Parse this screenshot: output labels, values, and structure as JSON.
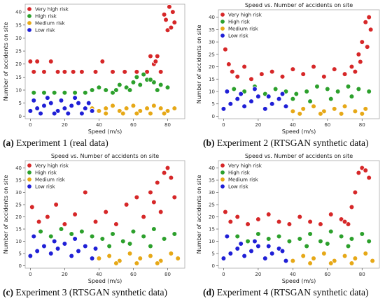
{
  "figure": {
    "captions": [
      {
        "tag": "(a)",
        "text": "Experiment 1 (real data)"
      },
      {
        "tag": "(b)",
        "text": "Experiment 2 (RTSGAN synthetic data)"
      },
      {
        "tag": "(c)",
        "text": "Experiment 3 (RTSGAN synthetic data)"
      },
      {
        "tag": "(d)",
        "text": "Experiment 4 (RTSGAN synthetic data)"
      }
    ]
  },
  "chart_data": [
    {
      "type": "scatter",
      "title": "",
      "xlabel": "Speed (m/s)",
      "ylabel": "Number of accidents on site",
      "xlim": [
        -3,
        90
      ],
      "ylim": [
        -1,
        43
      ],
      "xticks": [
        0,
        20,
        40,
        60,
        80
      ],
      "yticks": [
        0,
        5,
        10,
        15,
        20,
        25,
        30,
        35,
        40
      ],
      "grid": false,
      "legend_position": "top-left",
      "series": [
        {
          "name": "Very high risk",
          "color": "#d62728",
          "x": [
            0,
            2,
            4,
            8,
            12,
            16,
            20,
            25,
            30,
            38,
            42,
            48,
            55,
            62,
            68,
            72,
            74,
            76,
            70,
            73,
            79,
            81,
            83,
            84,
            80,
            82,
            78
          ],
          "y": [
            21,
            17,
            21,
            17,
            21,
            17,
            17,
            17,
            17,
            17,
            21,
            17,
            17,
            17,
            17,
            20,
            23,
            17,
            23,
            21,
            37,
            42,
            40,
            36,
            33,
            34,
            39
          ]
        },
        {
          "name": "High risk",
          "color": "#2ca02c",
          "x": [
            2,
            8,
            14,
            20,
            26,
            32,
            36,
            40,
            44,
            48,
            52,
            56,
            60,
            64,
            68,
            72,
            76,
            80,
            62,
            66,
            70,
            74,
            58,
            50
          ],
          "y": [
            9,
            9,
            9,
            9,
            9,
            9,
            10,
            11,
            10,
            9,
            12,
            11,
            13,
            12,
            14,
            13,
            12,
            11,
            15,
            16,
            14,
            10,
            10,
            10
          ]
        },
        {
          "name": "Medium risk",
          "color": "#e6a817",
          "x": [
            36,
            40,
            44,
            48,
            52,
            56,
            60,
            64,
            68,
            72,
            76,
            80,
            84,
            44,
            54,
            62,
            70,
            78
          ],
          "y": [
            3,
            2,
            3,
            4,
            2,
            3,
            4,
            2,
            3,
            4,
            3,
            2,
            3,
            1,
            1,
            1,
            1,
            1
          ]
        },
        {
          "name": "Low risk",
          "color": "#1f1fd6",
          "x": [
            0,
            4,
            8,
            12,
            16,
            20,
            24,
            28,
            32,
            36,
            2,
            10,
            18,
            26,
            34,
            6,
            14,
            22,
            30
          ],
          "y": [
            2,
            3,
            4,
            5,
            2,
            3,
            4,
            5,
            3,
            2,
            6,
            7,
            6,
            7,
            5,
            1,
            1,
            1,
            1
          ]
        }
      ]
    },
    {
      "type": "scatter",
      "title": "Speed vs. Number of accidents on site",
      "xlabel": "Speed (m/s)",
      "ylabel": "Number of accidents on site",
      "xlim": [
        -3,
        90
      ],
      "ylim": [
        -1,
        43
      ],
      "xticks": [
        0,
        20,
        40,
        60,
        80
      ],
      "yticks": [
        0,
        5,
        10,
        15,
        20,
        25,
        30,
        35,
        40
      ],
      "grid": false,
      "legend_position": "top-left",
      "series": [
        {
          "name": "Very high risk",
          "color": "#d62728",
          "x": [
            1,
            3,
            5,
            8,
            12,
            16,
            22,
            28,
            34,
            40,
            46,
            52,
            58,
            64,
            70,
            74,
            78,
            80,
            82,
            84,
            85,
            83,
            79,
            76
          ],
          "y": [
            27,
            21,
            18,
            16,
            20,
            15,
            17,
            18,
            16,
            19,
            17,
            20,
            16,
            19,
            17,
            20,
            25,
            30,
            38,
            40,
            35,
            28,
            22,
            18
          ]
        },
        {
          "name": "High risk",
          "color": "#2ca02c",
          "x": [
            6,
            12,
            18,
            24,
            30,
            36,
            42,
            48,
            54,
            60,
            66,
            72,
            78,
            84,
            40,
            50,
            62,
            74
          ],
          "y": [
            11,
            10,
            12,
            9,
            11,
            10,
            9,
            10,
            12,
            11,
            10,
            12,
            11,
            10,
            7,
            6,
            7,
            8
          ]
        },
        {
          "name": "Medium risk",
          "color": "#e6a817",
          "x": [
            40,
            46,
            52,
            58,
            64,
            70,
            76,
            82,
            44,
            56,
            68,
            80
          ],
          "y": [
            2,
            3,
            4,
            2,
            3,
            4,
            2,
            3,
            1,
            1,
            1,
            1
          ]
        },
        {
          "name": "Low risk",
          "color": "#1f1fd6",
          "x": [
            0,
            4,
            8,
            12,
            16,
            20,
            24,
            28,
            32,
            36,
            2,
            10,
            18,
            26,
            34
          ],
          "y": [
            3,
            5,
            7,
            4,
            6,
            8,
            3,
            5,
            7,
            4,
            10,
            9,
            11,
            8,
            9
          ]
        }
      ]
    },
    {
      "type": "scatter",
      "title": "Speed vs. Number of accidents on site",
      "xlabel": "Speed (m/s)",
      "ylabel": "Number of accidents on site",
      "xlim": [
        -3,
        90
      ],
      "ylim": [
        -1,
        43
      ],
      "xticks": [
        0,
        20,
        40,
        60,
        80
      ],
      "yticks": [
        0,
        5,
        10,
        15,
        20,
        25,
        30,
        35,
        40
      ],
      "grid": false,
      "legend_position": "top-left",
      "series": [
        {
          "name": "Very high risk",
          "color": "#d62728",
          "x": [
            1,
            5,
            10,
            15,
            20,
            26,
            32,
            38,
            44,
            50,
            56,
            62,
            66,
            70,
            74,
            78,
            80,
            82,
            84,
            76,
            72
          ],
          "y": [
            24,
            18,
            20,
            25,
            17,
            21,
            30,
            18,
            22,
            17,
            25,
            28,
            20,
            30,
            34,
            38,
            40,
            36,
            28,
            22,
            26
          ]
        },
        {
          "name": "High risk",
          "color": "#2ca02c",
          "x": [
            6,
            12,
            18,
            24,
            30,
            36,
            42,
            48,
            54,
            60,
            66,
            72,
            78,
            84,
            46,
            58,
            70
          ],
          "y": [
            14,
            12,
            15,
            13,
            14,
            12,
            11,
            13,
            10,
            14,
            12,
            15,
            11,
            13,
            8,
            9,
            8
          ]
        },
        {
          "name": "Medium risk",
          "color": "#e6a817",
          "x": [
            40,
            46,
            52,
            58,
            64,
            70,
            76,
            82,
            86,
            50,
            62,
            74
          ],
          "y": [
            3,
            4,
            2,
            5,
            3,
            4,
            2,
            5,
            3,
            1,
            1,
            1
          ]
        },
        {
          "name": "Low risk",
          "color": "#1f1fd6",
          "x": [
            0,
            4,
            8,
            12,
            16,
            20,
            24,
            28,
            32,
            36,
            2,
            14,
            26,
            38
          ],
          "y": [
            4,
            6,
            8,
            5,
            7,
            9,
            4,
            6,
            8,
            3,
            12,
            10,
            11,
            7
          ]
        }
      ]
    },
    {
      "type": "scatter",
      "title": "Speed vs. Number of accidents on site",
      "xlabel": "Speed (m/s)",
      "ylabel": "Number of accidents on site",
      "xlim": [
        -3,
        90
      ],
      "ylim": [
        -1,
        43
      ],
      "xticks": [
        0,
        20,
        40,
        60,
        80
      ],
      "yticks": [
        0,
        5,
        10,
        15,
        20,
        25,
        30,
        35,
        40
      ],
      "grid": false,
      "legend_position": "top-left",
      "series": [
        {
          "name": "Very high risk",
          "color": "#d62728",
          "x": [
            1,
            4,
            8,
            14,
            20,
            26,
            32,
            38,
            44,
            50,
            56,
            62,
            68,
            72,
            76,
            78,
            80,
            82,
            84,
            74,
            70
          ],
          "y": [
            22,
            18,
            20,
            17,
            19,
            21,
            18,
            17,
            20,
            18,
            17,
            21,
            19,
            17,
            30,
            38,
            40,
            39,
            36,
            24,
            18
          ]
        },
        {
          "name": "High risk",
          "color": "#2ca02c",
          "x": [
            8,
            14,
            20,
            26,
            32,
            38,
            44,
            50,
            56,
            62,
            68,
            74,
            80,
            84,
            48,
            60,
            72
          ],
          "y": [
            12,
            10,
            13,
            11,
            12,
            10,
            11,
            13,
            10,
            14,
            12,
            11,
            13,
            10,
            8,
            9,
            8
          ]
        },
        {
          "name": "Medium risk",
          "color": "#e6a817",
          "x": [
            40,
            46,
            52,
            58,
            64,
            70,
            76,
            82,
            86,
            50,
            62,
            74
          ],
          "y": [
            2,
            4,
            3,
            5,
            2,
            4,
            3,
            5,
            2,
            1,
            1,
            1
          ]
        },
        {
          "name": "Low risk",
          "color": "#1f1fd6",
          "x": [
            0,
            4,
            8,
            12,
            16,
            20,
            24,
            28,
            32,
            36,
            2,
            10,
            18,
            26,
            34
          ],
          "y": [
            3,
            5,
            7,
            4,
            6,
            8,
            3,
            5,
            7,
            2,
            12,
            9,
            10,
            8,
            6
          ]
        }
      ]
    }
  ]
}
